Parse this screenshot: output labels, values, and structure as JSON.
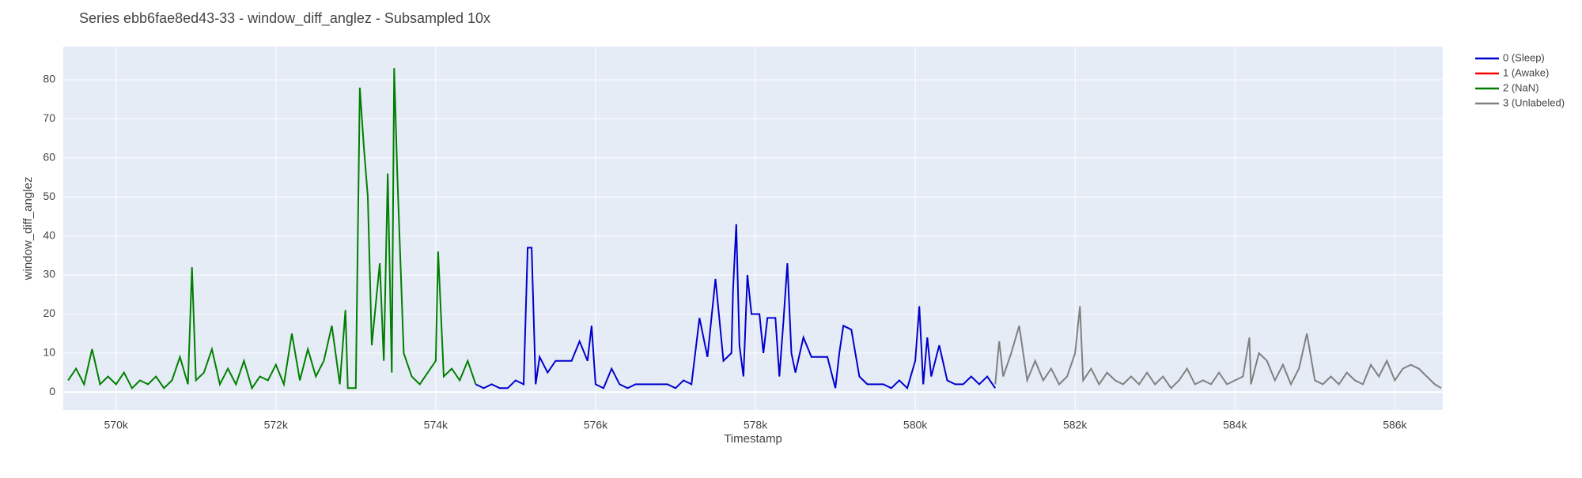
{
  "chart_data": {
    "type": "line",
    "title": "Series ebb6fae8ed43-33 - window_diff_anglez - Subsampled 10x",
    "x_label": "Timestamp",
    "y_label": "window_diff_anglez",
    "xlim": [
      569340,
      586600
    ],
    "ylim": [
      -4.6,
      88.5
    ],
    "xticks": [
      {
        "value": 570000,
        "label": "570k"
      },
      {
        "value": 572000,
        "label": "572k"
      },
      {
        "value": 574000,
        "label": "574k"
      },
      {
        "value": 576000,
        "label": "576k"
      },
      {
        "value": 578000,
        "label": "578k"
      },
      {
        "value": 580000,
        "label": "580k"
      },
      {
        "value": 582000,
        "label": "582k"
      },
      {
        "value": 584000,
        "label": "584k"
      },
      {
        "value": 586000,
        "label": "586k"
      }
    ],
    "yticks": [
      0,
      10,
      20,
      30,
      40,
      50,
      60,
      70,
      80
    ],
    "grid": true,
    "legend": "right",
    "series": [
      {
        "name": "0 (Sleep)",
        "color": "#0000cd",
        "x": [
          574500,
          574600,
          574700,
          574800,
          574900,
          575000,
          575100,
          575150,
          575200,
          575250,
          575300,
          575400,
          575500,
          575600,
          575700,
          575800,
          575900,
          575950,
          576000,
          576100,
          576200,
          576300,
          576400,
          576500,
          576600,
          576700,
          576800,
          576900,
          577000,
          577100,
          577200,
          577300,
          577400,
          577500,
          577600,
          577700,
          577720,
          577760,
          577800,
          577850,
          577900,
          577950,
          578050,
          578100,
          578150,
          578250,
          578300,
          578350,
          578400,
          578450,
          578500,
          578600,
          578700,
          578800,
          578900,
          579000,
          579050,
          579100,
          579200,
          579300,
          579400,
          579500,
          579600,
          579700,
          579800,
          579900,
          580000,
          580050,
          580100,
          580150,
          580200,
          580300,
          580400,
          580500,
          580600,
          580700,
          580800,
          580900,
          581000
        ],
        "values": [
          2,
          1,
          2,
          1,
          1,
          3,
          2,
          37,
          37,
          2,
          9,
          5,
          8,
          8,
          8,
          13,
          8,
          17,
          2,
          1,
          6,
          2,
          1,
          2,
          2,
          2,
          2,
          2,
          1,
          3,
          2,
          19,
          9,
          29,
          8,
          10,
          26,
          43,
          12,
          4,
          30,
          20,
          20,
          10,
          19,
          19,
          4,
          18,
          33,
          10,
          5,
          14,
          9,
          9,
          9,
          1,
          10,
          17,
          16,
          4,
          2,
          2,
          2,
          1,
          3,
          1,
          8,
          22,
          2,
          14,
          4,
          12,
          3,
          2,
          2,
          4,
          2,
          4,
          1
        ]
      },
      {
        "name": "1 (Awake)",
        "color": "#ff0000",
        "x": [],
        "values": []
      },
      {
        "name": "2 (NaN)",
        "color": "#008000",
        "x": [
          569400,
          569500,
          569600,
          569700,
          569800,
          569900,
          570000,
          570100,
          570200,
          570300,
          570400,
          570500,
          570600,
          570700,
          570800,
          570900,
          570950,
          571000,
          571100,
          571200,
          571300,
          571400,
          571500,
          571600,
          571700,
          571800,
          571900,
          572000,
          572100,
          572200,
          572300,
          572400,
          572500,
          572600,
          572700,
          572800,
          572870,
          572900,
          573000,
          573050,
          573100,
          573150,
          573200,
          573300,
          573350,
          573400,
          573450,
          573480,
          573520,
          573600,
          573700,
          573800,
          573900,
          574000,
          574030,
          574100,
          574200,
          574300,
          574400,
          574500
        ],
        "values": [
          3,
          6,
          2,
          11,
          2,
          4,
          2,
          5,
          1,
          3,
          2,
          4,
          1,
          3,
          9,
          2,
          32,
          3,
          5,
          11,
          2,
          6,
          2,
          8,
          1,
          4,
          3,
          7,
          2,
          15,
          3,
          11,
          4,
          8,
          17,
          2,
          21,
          1,
          1,
          78,
          63,
          50,
          12,
          33,
          8,
          56,
          5,
          83,
          55,
          10,
          4,
          2,
          5,
          8,
          36,
          4,
          6,
          3,
          8,
          2
        ]
      },
      {
        "name": "3 (Unlabeled)",
        "color": "#808080",
        "x": [
          581000,
          581050,
          581100,
          581200,
          581300,
          581400,
          581500,
          581600,
          581700,
          581800,
          581900,
          582000,
          582060,
          582100,
          582200,
          582300,
          582400,
          582500,
          582600,
          582700,
          582800,
          582900,
          583000,
          583100,
          583200,
          583300,
          583400,
          583500,
          583600,
          583700,
          583800,
          583900,
          584000,
          584100,
          584180,
          584200,
          584300,
          584400,
          584500,
          584600,
          584700,
          584800,
          584900,
          585000,
          585100,
          585200,
          585300,
          585400,
          585500,
          585600,
          585700,
          585800,
          585900,
          586000,
          586100,
          586200,
          586300,
          586400,
          586500,
          586580
        ],
        "values": [
          2,
          13,
          4,
          10,
          17,
          3,
          8,
          3,
          6,
          2,
          4,
          10,
          22,
          3,
          6,
          2,
          5,
          3,
          2,
          4,
          2,
          5,
          2,
          4,
          1,
          3,
          6,
          2,
          3,
          2,
          5,
          2,
          3,
          4,
          14,
          2,
          10,
          8,
          3,
          7,
          2,
          6,
          15,
          3,
          2,
          4,
          2,
          5,
          3,
          2,
          7,
          4,
          8,
          3,
          6,
          7,
          6,
          4,
          2,
          1
        ]
      }
    ]
  }
}
